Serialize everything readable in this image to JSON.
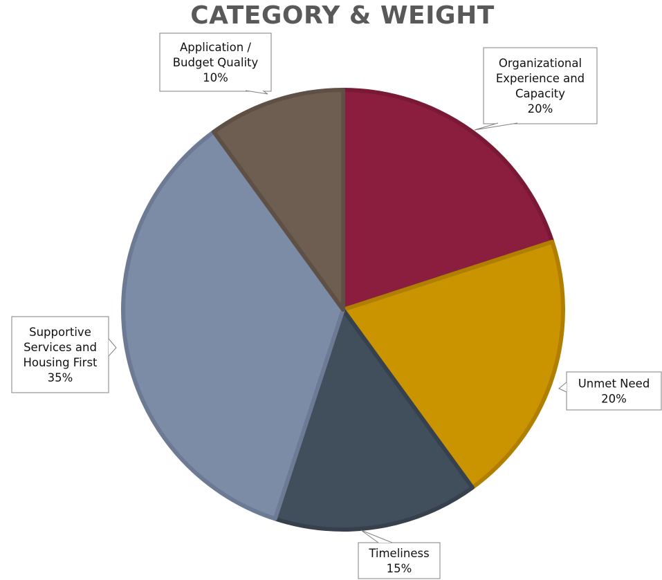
{
  "chart_data": {
    "type": "pie",
    "title": "CATEGORY & WEIGHT",
    "start_angle_deg": 0,
    "direction": "clockwise",
    "slices": [
      {
        "label_lines": [
          "Organizational",
          "Experience and",
          "Capacity"
        ],
        "value": 20,
        "value_label": "20%",
        "color": "#8B1E3F",
        "edge": "#7A1936"
      },
      {
        "label_lines": [
          "Unmet Need"
        ],
        "value": 20,
        "value_label": "20%",
        "color": "#C99400",
        "edge": "#B07F00"
      },
      {
        "label_lines": [
          "Timeliness"
        ],
        "value": 15,
        "value_label": "15%",
        "color": "#414E5C",
        "edge": "#36414D"
      },
      {
        "label_lines": [
          "Supportive",
          "Services and",
          "Housing First"
        ],
        "value": 35,
        "value_label": "35%",
        "color": "#7C8BA6",
        "edge": "#6C7A93"
      },
      {
        "label_lines": [
          "Application /",
          "Budget Quality"
        ],
        "value": 10,
        "value_label": "10%",
        "color": "#6E5E52",
        "edge": "#5F5046"
      }
    ]
  }
}
